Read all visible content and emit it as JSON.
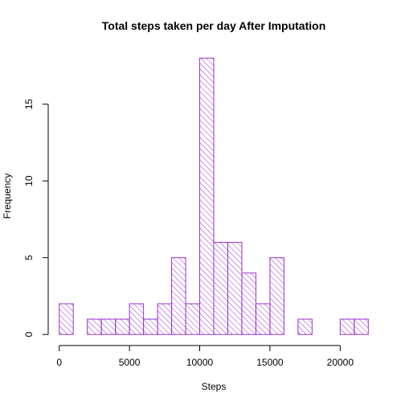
{
  "colors": {
    "bar": "#9A32CD",
    "axis": "#000000",
    "background": "#ffffff"
  },
  "chart_data": {
    "type": "bar",
    "title": "Total steps taken per day After Imputation",
    "xlabel": "Steps",
    "ylabel": "Frequency",
    "bin_width": 1000,
    "bins": [
      {
        "start": 0,
        "end": 1000,
        "count": 2
      },
      {
        "start": 1000,
        "end": 2000,
        "count": 0
      },
      {
        "start": 2000,
        "end": 3000,
        "count": 1
      },
      {
        "start": 3000,
        "end": 4000,
        "count": 1
      },
      {
        "start": 4000,
        "end": 5000,
        "count": 1
      },
      {
        "start": 5000,
        "end": 6000,
        "count": 2
      },
      {
        "start": 6000,
        "end": 7000,
        "count": 1
      },
      {
        "start": 7000,
        "end": 8000,
        "count": 2
      },
      {
        "start": 8000,
        "end": 9000,
        "count": 5
      },
      {
        "start": 9000,
        "end": 10000,
        "count": 2
      },
      {
        "start": 10000,
        "end": 11000,
        "count": 18
      },
      {
        "start": 11000,
        "end": 12000,
        "count": 6
      },
      {
        "start": 12000,
        "end": 13000,
        "count": 6
      },
      {
        "start": 13000,
        "end": 14000,
        "count": 4
      },
      {
        "start": 14000,
        "end": 15000,
        "count": 2
      },
      {
        "start": 15000,
        "end": 16000,
        "count": 5
      },
      {
        "start": 16000,
        "end": 17000,
        "count": 0
      },
      {
        "start": 17000,
        "end": 18000,
        "count": 1
      },
      {
        "start": 18000,
        "end": 19000,
        "count": 0
      },
      {
        "start": 19000,
        "end": 20000,
        "count": 0
      },
      {
        "start": 20000,
        "end": 21000,
        "count": 1
      },
      {
        "start": 21000,
        "end": 22000,
        "count": 1
      }
    ],
    "xlim": [
      0,
      22000
    ],
    "ylim": [
      0,
      18
    ],
    "x_ticks": [
      0,
      5000,
      10000,
      15000,
      20000
    ],
    "x_tick_labels": [
      "0",
      "5000",
      "10000",
      "15000",
      "20000"
    ],
    "y_ticks": [
      0,
      5,
      10,
      15
    ],
    "y_tick_labels": [
      "0",
      "5",
      "10",
      "15"
    ],
    "fill": "hatched",
    "grid": false,
    "legend": "none"
  }
}
